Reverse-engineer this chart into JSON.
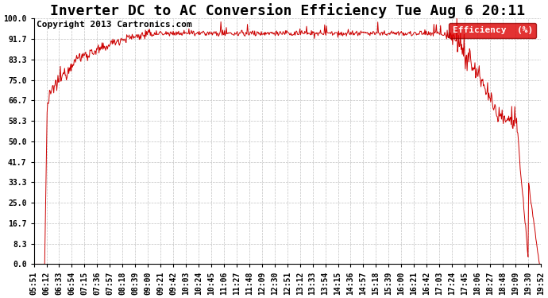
{
  "title": "Inverter DC to AC Conversion Efficiency Tue Aug 6 20:11",
  "copyright": "Copyright 2013 Cartronics.com",
  "legend_label": "Efficiency  (%)",
  "legend_bg": "#dd0000",
  "legend_text_color": "#ffffff",
  "line_color": "#cc0000",
  "bg_color": "#ffffff",
  "plot_bg_color": "#ffffff",
  "grid_color": "#bbbbbb",
  "ylabel_values": [
    0.0,
    8.3,
    16.7,
    25.0,
    33.3,
    41.7,
    50.0,
    58.3,
    66.7,
    75.0,
    83.3,
    91.7,
    100.0
  ],
  "x_tick_labels": [
    "05:51",
    "06:12",
    "06:33",
    "06:54",
    "07:15",
    "07:36",
    "07:57",
    "08:18",
    "08:39",
    "09:00",
    "09:21",
    "09:42",
    "10:03",
    "10:24",
    "10:45",
    "11:06",
    "11:27",
    "11:48",
    "12:09",
    "12:30",
    "12:51",
    "13:12",
    "13:33",
    "13:54",
    "14:15",
    "14:36",
    "14:57",
    "15:18",
    "15:39",
    "16:00",
    "16:21",
    "16:42",
    "17:03",
    "17:24",
    "17:45",
    "18:06",
    "18:27",
    "18:48",
    "19:09",
    "19:30",
    "19:52"
  ],
  "ylim": [
    0.0,
    100.0
  ],
  "title_fontsize": 13,
  "tick_fontsize": 7,
  "copyright_fontsize": 8
}
